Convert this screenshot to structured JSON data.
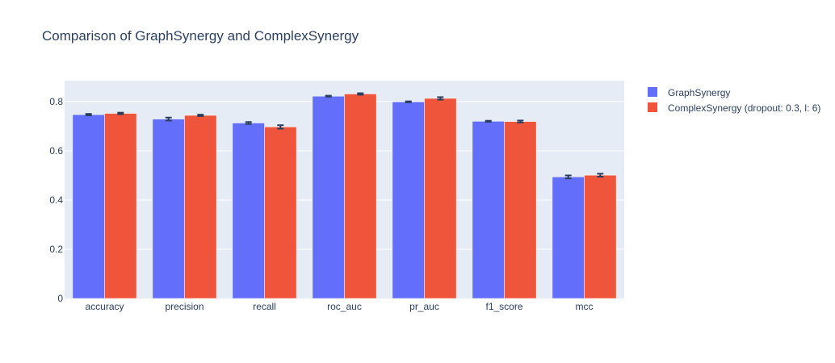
{
  "chart_data": {
    "type": "bar",
    "title": "Comparison of GraphSynergy and ComplexSynergy",
    "xlabel": "",
    "ylabel": "",
    "ylim": [
      0,
      0.885
    ],
    "y_ticks": [
      0,
      0.2,
      0.4,
      0.6,
      0.8
    ],
    "y_tick_labels": [
      "0",
      "0.2",
      "0.4",
      "0.6",
      "0.8"
    ],
    "categories": [
      "accuracy",
      "precision",
      "recall",
      "roc_auc",
      "pr_auc",
      "f1_score",
      "mcc"
    ],
    "series": [
      {
        "name": "GraphSynergy",
        "color": "#636efa",
        "values": [
          0.747,
          0.729,
          0.713,
          0.822,
          0.799,
          0.72,
          0.494
        ],
        "errors": [
          0.003,
          0.006,
          0.004,
          0.002,
          0.002,
          0.002,
          0.006
        ]
      },
      {
        "name": "ComplexSynergy (dropout: 0.3, l: 6)",
        "color": "#ef553b",
        "values": [
          0.752,
          0.744,
          0.697,
          0.831,
          0.813,
          0.719,
          0.501
        ],
        "errors": [
          0.003,
          0.003,
          0.007,
          0.003,
          0.005,
          0.004,
          0.006
        ]
      }
    ],
    "grid": true,
    "legend_position": "top-right",
    "plot_bg": "#e5ecf6",
    "error_bar_color": "#2a3f5f"
  }
}
